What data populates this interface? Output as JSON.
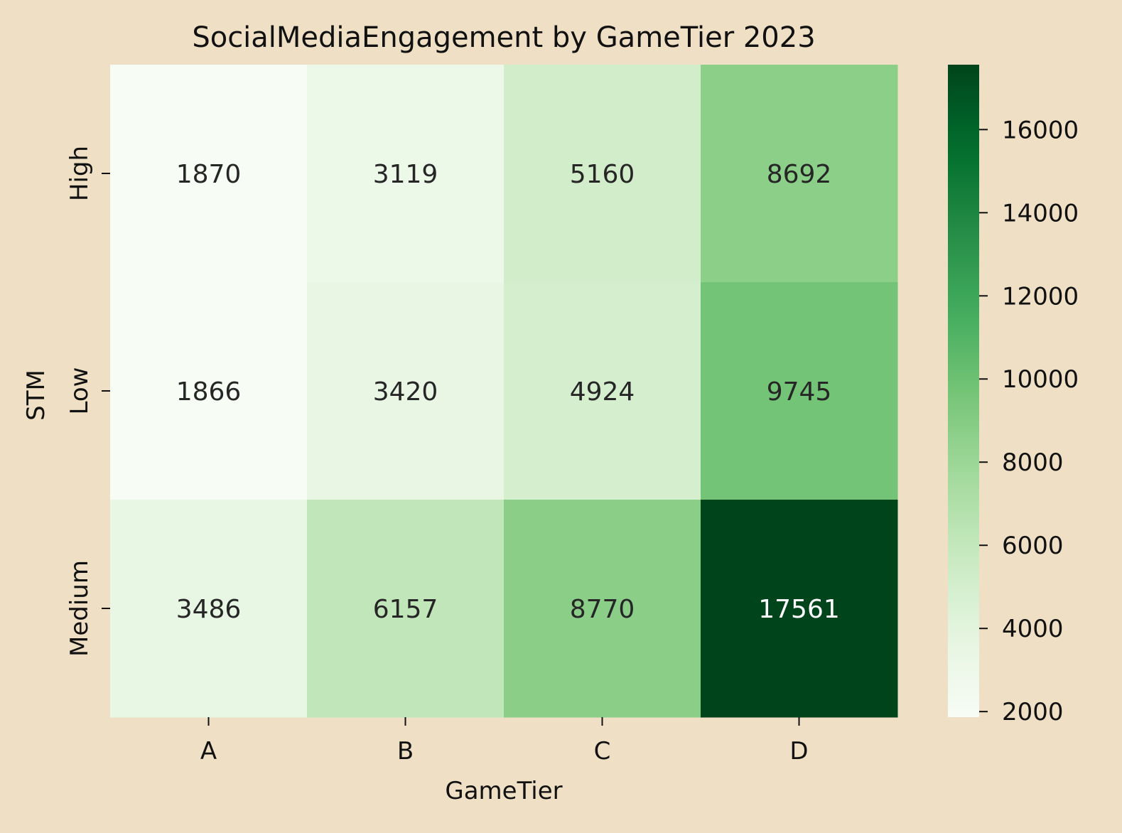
{
  "chart_data": {
    "type": "heatmap",
    "title": "SocialMediaEngagement by GameTier 2023",
    "xlabel": "GameTier",
    "ylabel": "STM",
    "x_categories": [
      "A",
      "B",
      "C",
      "D"
    ],
    "y_categories": [
      "High",
      "Low",
      "Medium"
    ],
    "values": [
      [
        1870,
        3119,
        5160,
        8692
      ],
      [
        1866,
        3420,
        4924,
        9745
      ],
      [
        3486,
        6157,
        8770,
        17561
      ]
    ],
    "colorbar": {
      "cmap": "Greens",
      "vmin": 1866,
      "vmax": 17561,
      "ticks": [
        2000,
        4000,
        6000,
        8000,
        10000,
        12000,
        14000,
        16000
      ]
    }
  },
  "colors": {
    "background": "#efe0c5",
    "text": "#111111",
    "cell_text_light": "#ffffff",
    "cell_text_dark": "#262626"
  }
}
